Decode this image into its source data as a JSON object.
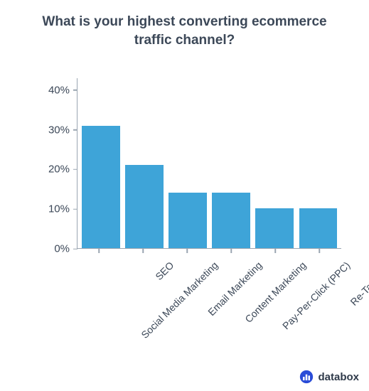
{
  "title": "What is your highest converting ecommerce traffic channel?",
  "title_fontsize": 19,
  "title_color": "#3c4858",
  "chart": {
    "type": "bar",
    "categories": [
      "SEO",
      "Social Media Marketing",
      "Email Marketing",
      "Content Marketing",
      "Pay-Per-Click (PPC)",
      "Re-Targeting"
    ],
    "values": [
      31,
      21,
      14,
      14,
      10,
      10
    ],
    "bar_color": "#3ea4d8",
    "axis_color": "#9aa5b1",
    "tick_color": "#3c4858",
    "tick_fontsize": 15,
    "xlabel_fontsize": 14,
    "xlabel_rotation_deg": -45,
    "ylim": [
      0,
      43
    ],
    "ytick_step": 10,
    "yticks": [
      "0%",
      "10%",
      "20%",
      "30%",
      "40%"
    ],
    "background_color": "#ffffff",
    "bar_width": 0.88
  },
  "brand": {
    "label": "databox",
    "text_color": "#2f3a4a",
    "fontsize": 15,
    "icon_circle_color": "#2a4cd7",
    "icon_bar_color": "#ffffff"
  }
}
